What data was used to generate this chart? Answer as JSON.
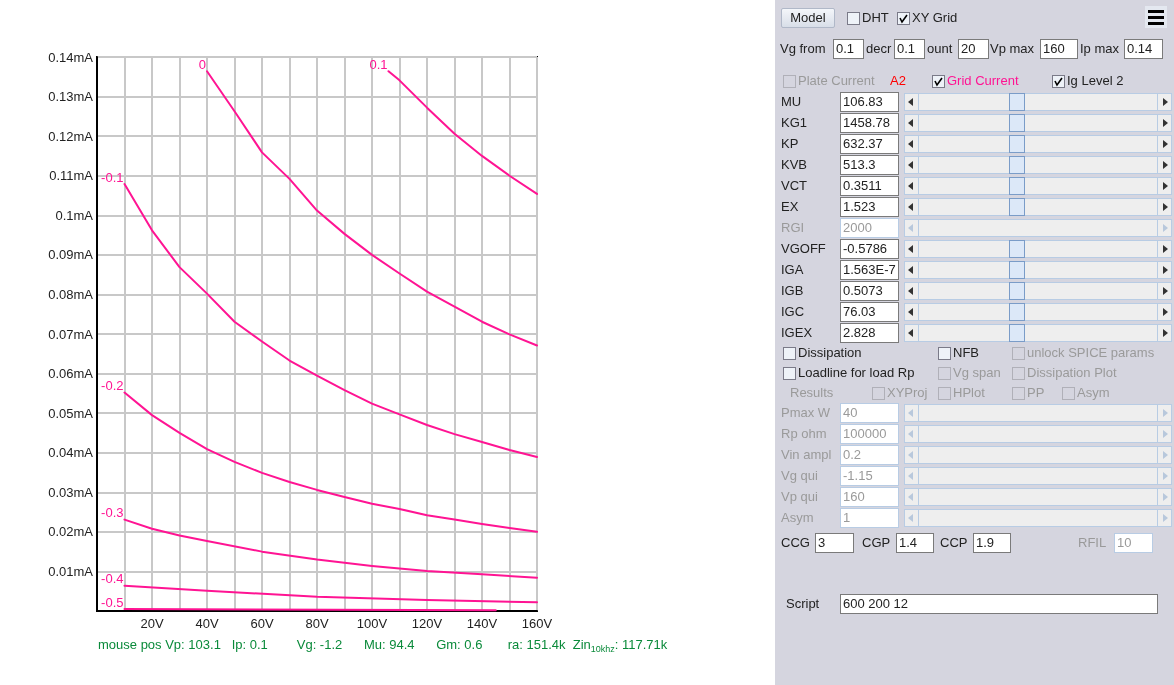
{
  "chart_data": [
    {
      "type": "line",
      "xlim": [
        0,
        160
      ],
      "ylim": [
        0,
        0.14
      ],
      "xticks": [
        {
          "value": 0,
          "label": null
        },
        {
          "value": 10,
          "label": null
        },
        {
          "value": 20,
          "label": "20V"
        },
        {
          "value": 30,
          "label": null
        },
        {
          "value": 40,
          "label": "40V"
        },
        {
          "value": 50,
          "label": null
        },
        {
          "value": 60,
          "label": "60V"
        },
        {
          "value": 70,
          "label": null
        },
        {
          "value": 80,
          "label": "80V"
        },
        {
          "value": 90,
          "label": null
        },
        {
          "value": 100,
          "label": "100V"
        },
        {
          "value": 110,
          "label": null
        },
        {
          "value": 120,
          "label": "120V"
        },
        {
          "value": 130,
          "label": null
        },
        {
          "value": 140,
          "label": "140V"
        },
        {
          "value": 150,
          "label": null
        },
        {
          "value": 160,
          "label": "160V"
        }
      ],
      "yticks": [
        {
          "value": 0,
          "label": null
        },
        {
          "value": 0.01,
          "label": "0.01mA"
        },
        {
          "value": 0.02,
          "label": "0.02mA"
        },
        {
          "value": 0.03,
          "label": "0.03mA"
        },
        {
          "value": 0.04,
          "label": "0.04mA"
        },
        {
          "value": 0.05,
          "label": "0.05mA"
        },
        {
          "value": 0.06,
          "label": "0.06mA"
        },
        {
          "value": 0.07,
          "label": "0.07mA"
        },
        {
          "value": 0.08,
          "label": "0.08mA"
        },
        {
          "value": 0.09,
          "label": "0.09mA"
        },
        {
          "value": 0.1,
          "label": "0.1mA"
        },
        {
          "value": 0.11,
          "label": "0.11mA"
        },
        {
          "value": 0.12,
          "label": "0.12mA"
        },
        {
          "value": 0.13,
          "label": "0.13mA"
        },
        {
          "value": 0.14,
          "label": "0.14mA"
        }
      ],
      "grid": true,
      "legend": false,
      "series": [
        {
          "name": "0",
          "color": "#ff1493",
          "x": [
            40,
            50,
            60,
            70,
            80,
            90,
            100,
            110,
            120,
            130,
            140,
            150,
            160
          ],
          "values": [
            0.1364,
            0.1263,
            0.1159,
            0.1092,
            0.1012,
            0.0953,
            0.09,
            0.0853,
            0.0807,
            0.0769,
            0.0731,
            0.0699,
            0.0671
          ]
        },
        {
          "name": "0.1",
          "color": "#ff1493",
          "x": [
            106,
            110,
            120,
            130,
            140,
            150,
            160
          ],
          "values": [
            0.1364,
            0.1341,
            0.1272,
            0.1206,
            0.115,
            0.11,
            0.1054
          ]
        },
        {
          "name": "-0.1",
          "color": "#ff1493",
          "x": [
            10,
            20,
            30,
            40,
            50,
            60,
            70,
            80,
            90,
            100,
            110,
            120,
            130,
            140,
            150,
            160
          ],
          "values": [
            0.1079,
            0.0962,
            0.0869,
            0.0802,
            0.0731,
            0.0681,
            0.0633,
            0.0595,
            0.0558,
            0.0524,
            0.0497,
            0.047,
            0.0447,
            0.0427,
            0.0407,
            0.0389
          ]
        },
        {
          "name": "-0.2",
          "color": "#ff1493",
          "x": [
            10,
            20,
            30,
            40,
            50,
            60,
            70,
            80,
            90,
            100,
            110,
            120,
            130,
            140,
            150,
            160
          ],
          "values": [
            0.0552,
            0.0495,
            0.045,
            0.0409,
            0.0377,
            0.0349,
            0.0326,
            0.0306,
            0.0288,
            0.0271,
            0.0258,
            0.0242,
            0.0231,
            0.022,
            0.021,
            0.02
          ]
        },
        {
          "name": "-0.3",
          "color": "#ff1493",
          "x": [
            10,
            20,
            30,
            40,
            60,
            80,
            100,
            120,
            140,
            160
          ],
          "values": [
            0.0231,
            0.0208,
            0.0191,
            0.0177,
            0.015,
            0.013,
            0.0114,
            0.0101,
            0.0093,
            0.0084
          ]
        },
        {
          "name": "-0.4",
          "color": "#ff1493",
          "x": [
            10,
            40,
            80,
            120,
            160
          ],
          "values": [
            0.0064,
            0.0051,
            0.0036,
            0.0028,
            0.0022
          ]
        },
        {
          "name": "-0.5",
          "color": "#ff1493",
          "x": [
            10,
            145
          ],
          "values": [
            0.0005,
            0.0002
          ]
        }
      ],
      "annotations": [
        "mouse pos Vp: 103.1   Ip: 0.1        Vg: -1.2      Mu: 94.4      Gm: 0.6       ra: 151.4k  Zin$_{10khz}$: 117.71k"
      ]
    },
    {
      "type": "other",
      "annotations": [
        "Model",
        "DHT",
        "XY Grid",
        "Vg from",
        "0.1",
        "decr",
        "0.1",
        "ount",
        "20",
        "Vp max",
        "160",
        "Ip max",
        "0.14",
        "Plate Current",
        "A2",
        "Grid Current",
        "Ig Level 2",
        "MU",
        "106.83",
        "KG1",
        "1458.78",
        "KP",
        "632.37",
        "KVB",
        "513.3",
        "VCT",
        "0.3511",
        "EX",
        "1.523",
        "RGI",
        "2000",
        "VGOFF",
        "-0.5786",
        "IGA",
        "1.563E-7",
        "IGB",
        "0.5073",
        "IGC",
        "76.03",
        "IGEX",
        "2.828",
        "Dissipation",
        "NFB",
        "unlock SPICE params",
        "Loadline for load Rp",
        "Vg span",
        "Dissipation Plot",
        "Results",
        "XYProj",
        "HPlot",
        "PP",
        "Asym",
        "Pmax W",
        "40",
        "Rp ohm",
        "100000",
        "Vin ampl",
        "0.2",
        "Vg qui",
        "-1.15",
        "Vp qui",
        "160",
        "Asym",
        "1",
        "CCG",
        "3",
        "CGP",
        "1.4",
        "CCP",
        "1.9",
        "RFIL",
        "10",
        "Script",
        "600 200 12"
      ]
    }
  ]
}
